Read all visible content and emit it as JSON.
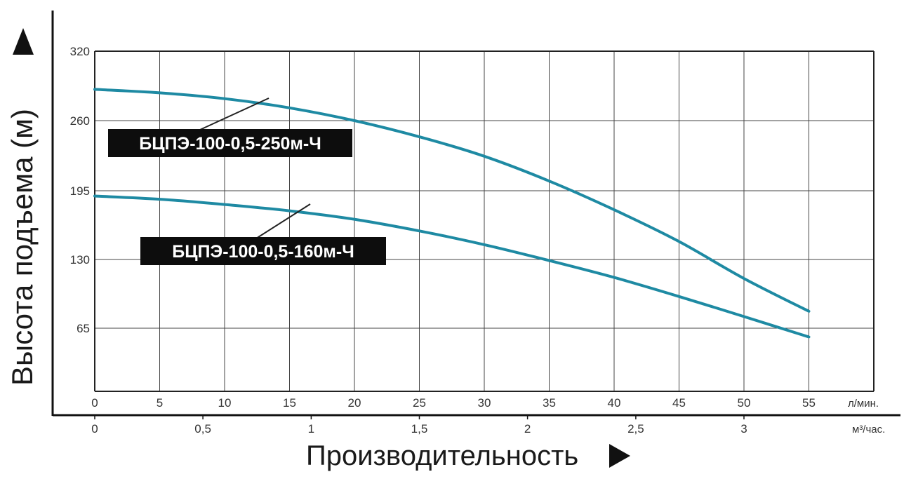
{
  "chart_data": {
    "type": "line",
    "ylabel": "Высота подъема (м)",
    "xlabel": "Производительность",
    "x_primary_unit": "л/мин.",
    "x_secondary_unit": "м³/час.",
    "x_primary_ticks": [
      "0",
      "5",
      "10",
      "15",
      "20",
      "25",
      "30",
      "35",
      "40",
      "45",
      "50",
      "55"
    ],
    "x_secondary_ticks": [
      {
        "label": "0",
        "value_lpm": 0
      },
      {
        "label": "0,5",
        "value_lpm": 8.33
      },
      {
        "label": "1",
        "value_lpm": 16.67
      },
      {
        "label": "1,5",
        "value_lpm": 25
      },
      {
        "label": "2",
        "value_lpm": 33.33
      },
      {
        "label": "2,5",
        "value_lpm": 41.67
      },
      {
        "label": "3",
        "value_lpm": 50
      }
    ],
    "y_ticks": [
      {
        "label": "65",
        "level": 1
      },
      {
        "label": "130",
        "level": 2
      },
      {
        "label": "195",
        "level": 3
      },
      {
        "label": "260",
        "level": 4
      },
      {
        "label": "320",
        "level": 5
      }
    ],
    "xlim": [
      0,
      60
    ],
    "grid": true,
    "series": [
      {
        "name": "БЦПЭ-100-0,5-250м-Ч",
        "color": "#1e8aa3",
        "points": [
          [
            0,
            287
          ],
          [
            5,
            284
          ],
          [
            10,
            279
          ],
          [
            15,
            271
          ],
          [
            20,
            260
          ],
          [
            25,
            245
          ],
          [
            30,
            227
          ],
          [
            35,
            204
          ],
          [
            40,
            177
          ],
          [
            45,
            147
          ],
          [
            50,
            112
          ],
          [
            55,
            81
          ]
        ]
      },
      {
        "name": "БЦПЭ-100-0,5-160м-Ч",
        "color": "#1e8aa3",
        "points": [
          [
            0,
            190
          ],
          [
            5,
            187
          ],
          [
            10,
            182
          ],
          [
            15,
            176
          ],
          [
            20,
            168
          ],
          [
            25,
            157
          ],
          [
            30,
            144
          ],
          [
            35,
            129
          ],
          [
            40,
            113
          ],
          [
            45,
            95
          ],
          [
            50,
            76
          ],
          [
            55,
            56
          ]
        ]
      }
    ]
  }
}
